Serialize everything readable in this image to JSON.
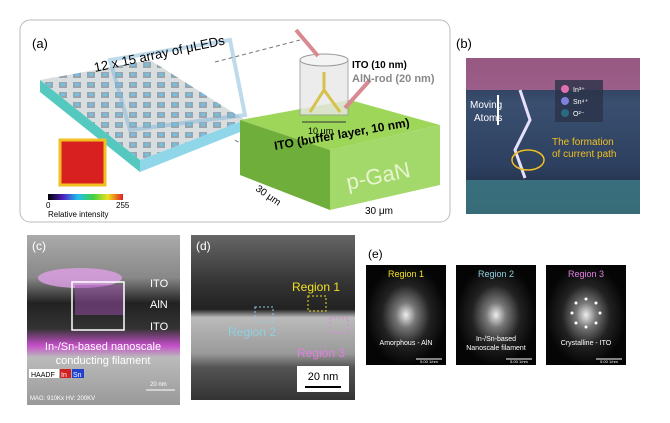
{
  "panel_a": {
    "label": "(a)",
    "array_title": "12 x 15 array of μLEDs",
    "scale_min": "0",
    "scale_max": "255",
    "scale_title": "Relative intensity",
    "ito_top": "ITO (10 nm)",
    "aln_rod": "AlN-rod (20 nm)",
    "rod_width": "10 μm",
    "ito_buffer": "ITO (buffer layer, 10 nm)",
    "substrate": "p-GaN",
    "side_left": "30 μm",
    "side_bottom": "30 μm"
  },
  "panel_b": {
    "label": "(b)",
    "moving": [
      "Moving",
      "Atoms"
    ],
    "legend": [
      "In³⁺",
      "Sn⁴⁺",
      "O²⁻"
    ],
    "path_text": [
      "The formation",
      "of current path"
    ]
  },
  "panel_c": {
    "label": "(c)",
    "layers": [
      "ITO",
      "AlN",
      "ITO"
    ],
    "filament": [
      "In-/Sn-based nanoscale",
      "conducting filament"
    ],
    "haadf": "HAADF",
    "in": "In",
    "sn": "Sn",
    "scale": "20 nm",
    "meta": "MAG: 910Kx HV: 200KV"
  },
  "panel_d": {
    "label": "(d)",
    "region1": "Region 1",
    "region2": "Region 2",
    "region3": "Region 3",
    "scale": "20 nm"
  },
  "panel_e": {
    "label": "(e)",
    "images": [
      {
        "title": "Region 1",
        "caption": [
          "Amorphous - AlN"
        ],
        "scale": "5.00 1/nm"
      },
      {
        "title": "Region 2",
        "caption": [
          "In-/Sn-based",
          "Nanoscale filament"
        ],
        "scale": "5.00 1/nm"
      },
      {
        "title": "Region 3",
        "caption": [
          "Crystalline - ITO"
        ],
        "scale": "5.00 1/nm"
      }
    ]
  }
}
